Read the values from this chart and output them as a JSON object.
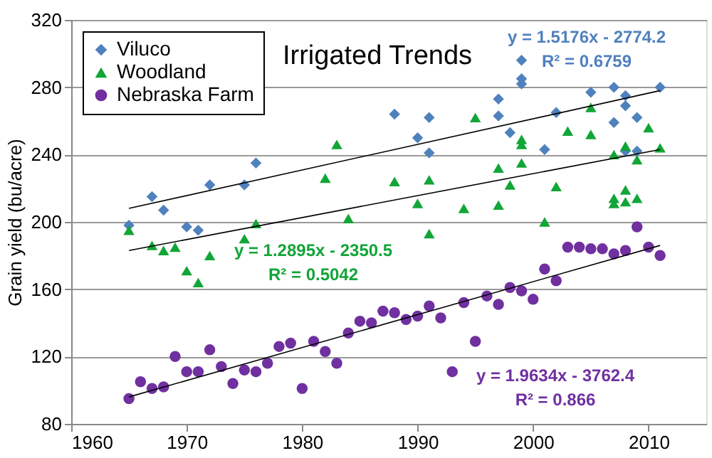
{
  "chart_data": {
    "type": "scatter",
    "title": "Irrigated Trends",
    "ylabel": "Grain yield (bu/acre)",
    "xlim": [
      1960,
      2015
    ],
    "xticks": [
      1960,
      1970,
      1980,
      1990,
      2000,
      2010
    ],
    "ylim": [
      80,
      320
    ],
    "yticks": [
      80,
      120,
      160,
      200,
      240,
      280,
      320
    ],
    "grid": "y",
    "legend": "top left",
    "series": [
      {
        "name": "Viluco",
        "marker": "diamond",
        "color": "#4f81bd",
        "x": [
          1965,
          1967,
          1968,
          1970,
          1971,
          1972,
          1975,
          1976,
          1988,
          1990,
          1991,
          1991,
          1997,
          1997,
          1998,
          1999,
          1999,
          1999,
          2001,
          2002,
          2005,
          2007,
          2007,
          2008,
          2008,
          2008,
          2009,
          2009,
          2011
        ],
        "values": [
          198,
          215,
          207,
          197,
          195,
          222,
          222,
          235,
          264,
          250,
          262,
          241,
          273,
          263,
          253,
          296,
          285,
          282,
          243,
          265,
          277,
          280,
          259,
          275,
          269,
          242,
          262,
          242,
          280
        ]
      },
      {
        "name": "Woodland",
        "marker": "triangle",
        "color": "#12a537",
        "x": [
          1965,
          1967,
          1968,
          1969,
          1970,
          1971,
          1972,
          1975,
          1976,
          1982,
          1983,
          1984,
          1988,
          1990,
          1991,
          1991,
          1994,
          1995,
          1997,
          1997,
          1998,
          1999,
          1999,
          1999,
          2001,
          2002,
          2003,
          2005,
          2005,
          2007,
          2007,
          2007,
          2008,
          2008,
          2008,
          2009,
          2009,
          2010,
          2011
        ],
        "values": [
          195,
          186,
          183,
          185,
          171,
          164,
          180,
          190,
          199,
          226,
          246,
          202,
          224,
          211,
          225,
          193,
          208,
          262,
          232,
          210,
          222,
          249,
          246,
          235,
          200,
          221,
          254,
          268,
          252,
          240,
          214,
          211,
          245,
          219,
          212,
          237,
          214,
          256,
          244
        ]
      },
      {
        "name": "Nebraska Farm",
        "marker": "circle",
        "color": "#7030a0",
        "x": [
          1965,
          1966,
          1967,
          1968,
          1969,
          1970,
          1971,
          1972,
          1973,
          1974,
          1975,
          1976,
          1977,
          1978,
          1979,
          1980,
          1981,
          1982,
          1983,
          1984,
          1985,
          1986,
          1987,
          1988,
          1989,
          1990,
          1991,
          1992,
          1993,
          1994,
          1995,
          1996,
          1997,
          1998,
          1999,
          2000,
          2001,
          2002,
          2003,
          2004,
          2005,
          2006,
          2007,
          2008,
          2009,
          2010,
          2011
        ],
        "values": [
          95,
          105,
          101,
          102,
          120,
          111,
          111,
          124,
          114,
          104,
          112,
          111,
          116,
          126,
          128,
          101,
          129,
          123,
          116,
          134,
          141,
          140,
          147,
          146,
          142,
          144,
          150,
          143,
          111,
          152,
          129,
          156,
          151,
          161,
          159,
          154,
          172,
          165,
          185,
          185,
          184,
          184,
          181,
          183,
          197,
          185,
          180
        ]
      },
      {
        "type": "line",
        "color": "#000000",
        "x": [
          1965,
          2011
        ],
        "values": [
          208,
          278
        ]
      },
      {
        "type": "line",
        "color": "#000000",
        "x": [
          1965,
          2011
        ],
        "values": [
          183,
          243
        ]
      },
      {
        "type": "line",
        "color": "#000000",
        "x": [
          1965,
          2011
        ],
        "values": [
          96,
          186
        ]
      }
    ],
    "annotations": [
      "y = 1.5176x - 2774.2\nR² = 0.6759",
      "y = 1.2895x - 2350.5\nR² = 0.5042",
      "y = 1.9634x - 3762.4\nR² = 0.866"
    ]
  }
}
